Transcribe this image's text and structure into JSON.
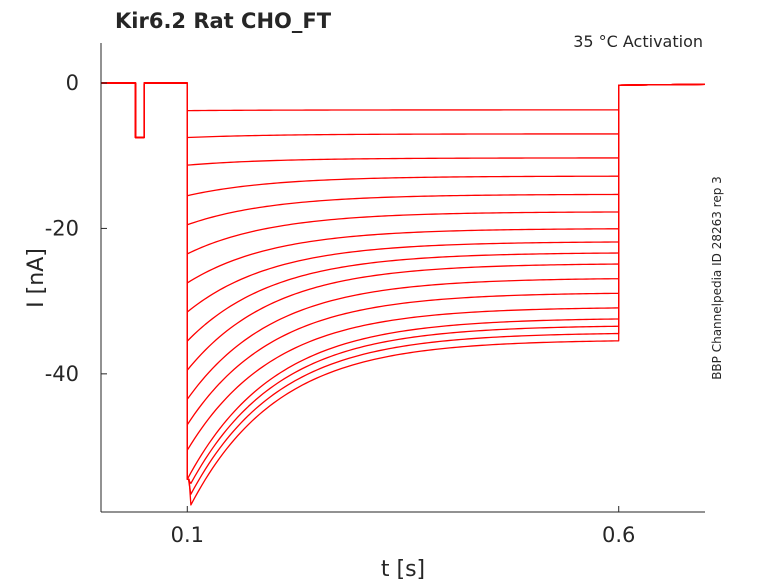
{
  "chart_data": {
    "type": "line",
    "title": "Kir6.2  Rat  CHO_FT",
    "annotation": "35 °C  Activation",
    "side_label": "BBP Channelpedia ID 28263 rep 3",
    "xlabel": "t [s]",
    "ylabel": "I [nA]",
    "xlim": [
      0.0,
      0.7
    ],
    "ylim": [
      -59,
      5.5
    ],
    "x_ticks": [
      0.1,
      0.6
    ],
    "x_tick_labels": [
      "0.1",
      "0.6"
    ],
    "y_ticks": [
      0,
      -20,
      -40
    ],
    "y_tick_labels": [
      "0",
      "-20",
      "-40"
    ],
    "grid": false,
    "line_color": "#ff0000",
    "prepulse": {
      "start": 0.04,
      "end": 0.05,
      "level": -7.5
    },
    "step_start": 0.1,
    "step_end": 0.6,
    "tail_level": -0.3,
    "peak_level": -54.5,
    "series": [
      {
        "initial": -3.8,
        "final": -3.7
      },
      {
        "initial": -7.5,
        "final": -7.0
      },
      {
        "initial": -11.3,
        "final": -10.3
      },
      {
        "initial": -15.5,
        "final": -12.8
      },
      {
        "initial": -19.5,
        "final": -15.3
      },
      {
        "initial": -23.5,
        "final": -17.7
      },
      {
        "initial": -27.5,
        "final": -20.0
      },
      {
        "initial": -31.5,
        "final": -21.8
      },
      {
        "initial": -35.5,
        "final": -23.3
      },
      {
        "initial": -39.5,
        "final": -24.8
      },
      {
        "initial": -43.5,
        "final": -26.8
      },
      {
        "initial": -47.0,
        "final": -28.8
      },
      {
        "initial": -50.5,
        "final": -30.8
      },
      {
        "initial": -54.5,
        "final": -32.3
      },
      {
        "initial": -56.0,
        "final": -33.3
      },
      {
        "initial": -57.5,
        "final": -34.3
      },
      {
        "initial": -59.0,
        "final": -35.3
      }
    ]
  }
}
